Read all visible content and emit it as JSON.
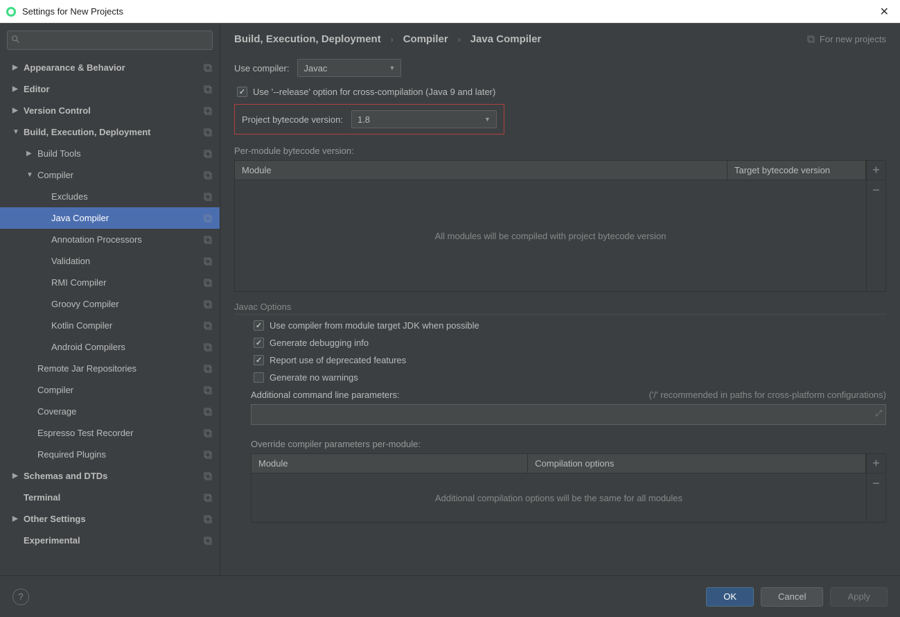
{
  "window": {
    "title": "Settings for New Projects"
  },
  "sidebar": {
    "search_placeholder": "",
    "items": [
      {
        "label": "Appearance & Behavior",
        "bold": true,
        "arrow": "▶",
        "indent": 0,
        "badge": true
      },
      {
        "label": "Editor",
        "bold": true,
        "arrow": "▶",
        "indent": 0,
        "badge": true
      },
      {
        "label": "Version Control",
        "bold": true,
        "arrow": "▶",
        "indent": 0,
        "badge": true
      },
      {
        "label": "Build, Execution, Deployment",
        "bold": true,
        "arrow": "▼",
        "indent": 0,
        "badge": true
      },
      {
        "label": "Build Tools",
        "arrow": "▶",
        "indent": 1,
        "badge": true
      },
      {
        "label": "Compiler",
        "arrow": "▼",
        "indent": 1,
        "badge": true
      },
      {
        "label": "Excludes",
        "indent": 2,
        "badge": true
      },
      {
        "label": "Java Compiler",
        "indent": 2,
        "badge": true,
        "selected": true
      },
      {
        "label": "Annotation Processors",
        "indent": 2,
        "badge": true
      },
      {
        "label": "Validation",
        "indent": 2,
        "badge": true
      },
      {
        "label": "RMI Compiler",
        "indent": 2,
        "badge": true
      },
      {
        "label": "Groovy Compiler",
        "indent": 2,
        "badge": true
      },
      {
        "label": "Kotlin Compiler",
        "indent": 2,
        "badge": true
      },
      {
        "label": "Android Compilers",
        "indent": 2,
        "badge": true
      },
      {
        "label": "Remote Jar Repositories",
        "indent": 1,
        "badge": true
      },
      {
        "label": "Compiler",
        "indent": 1,
        "badge": true
      },
      {
        "label": "Coverage",
        "indent": 1,
        "badge": true
      },
      {
        "label": "Espresso Test Recorder",
        "indent": 1,
        "badge": true
      },
      {
        "label": "Required Plugins",
        "indent": 1,
        "badge": true
      },
      {
        "label": "Schemas and DTDs",
        "bold": true,
        "arrow": "▶",
        "indent": 0,
        "badge": true
      },
      {
        "label": "Terminal",
        "bold": true,
        "indent": 0,
        "badge": true
      },
      {
        "label": "Other Settings",
        "bold": true,
        "arrow": "▶",
        "indent": 0,
        "badge": true
      },
      {
        "label": "Experimental",
        "bold": true,
        "indent": 0,
        "badge": true
      }
    ]
  },
  "breadcrumb": {
    "items": [
      "Build, Execution, Deployment",
      "Compiler",
      "Java Compiler"
    ],
    "right_label": "For new projects"
  },
  "form": {
    "use_compiler_label": "Use compiler:",
    "use_compiler_value": "Javac",
    "release_option": "Use '--release' option for cross-compilation (Java 9 and later)",
    "bytecode_label": "Project bytecode version:",
    "bytecode_value": "1.8",
    "per_module_label": "Per-module bytecode version:",
    "table1": {
      "col1": "Module",
      "col2": "Target bytecode version",
      "empty": "All modules will be compiled with project bytecode version"
    },
    "javac_header": "Javac Options",
    "opt1": "Use compiler from module target JDK when possible",
    "opt2": "Generate debugging info",
    "opt3": "Report use of deprecated features",
    "opt4": "Generate no warnings",
    "params_label": "Additional command line parameters:",
    "params_hint": "('/' recommended in paths for cross-platform configurations)",
    "override_label": "Override compiler parameters per-module:",
    "table2": {
      "col1": "Module",
      "col2": "Compilation options",
      "empty": "Additional compilation options will be the same for all modules"
    }
  },
  "footer": {
    "ok": "OK",
    "cancel": "Cancel",
    "apply": "Apply"
  }
}
